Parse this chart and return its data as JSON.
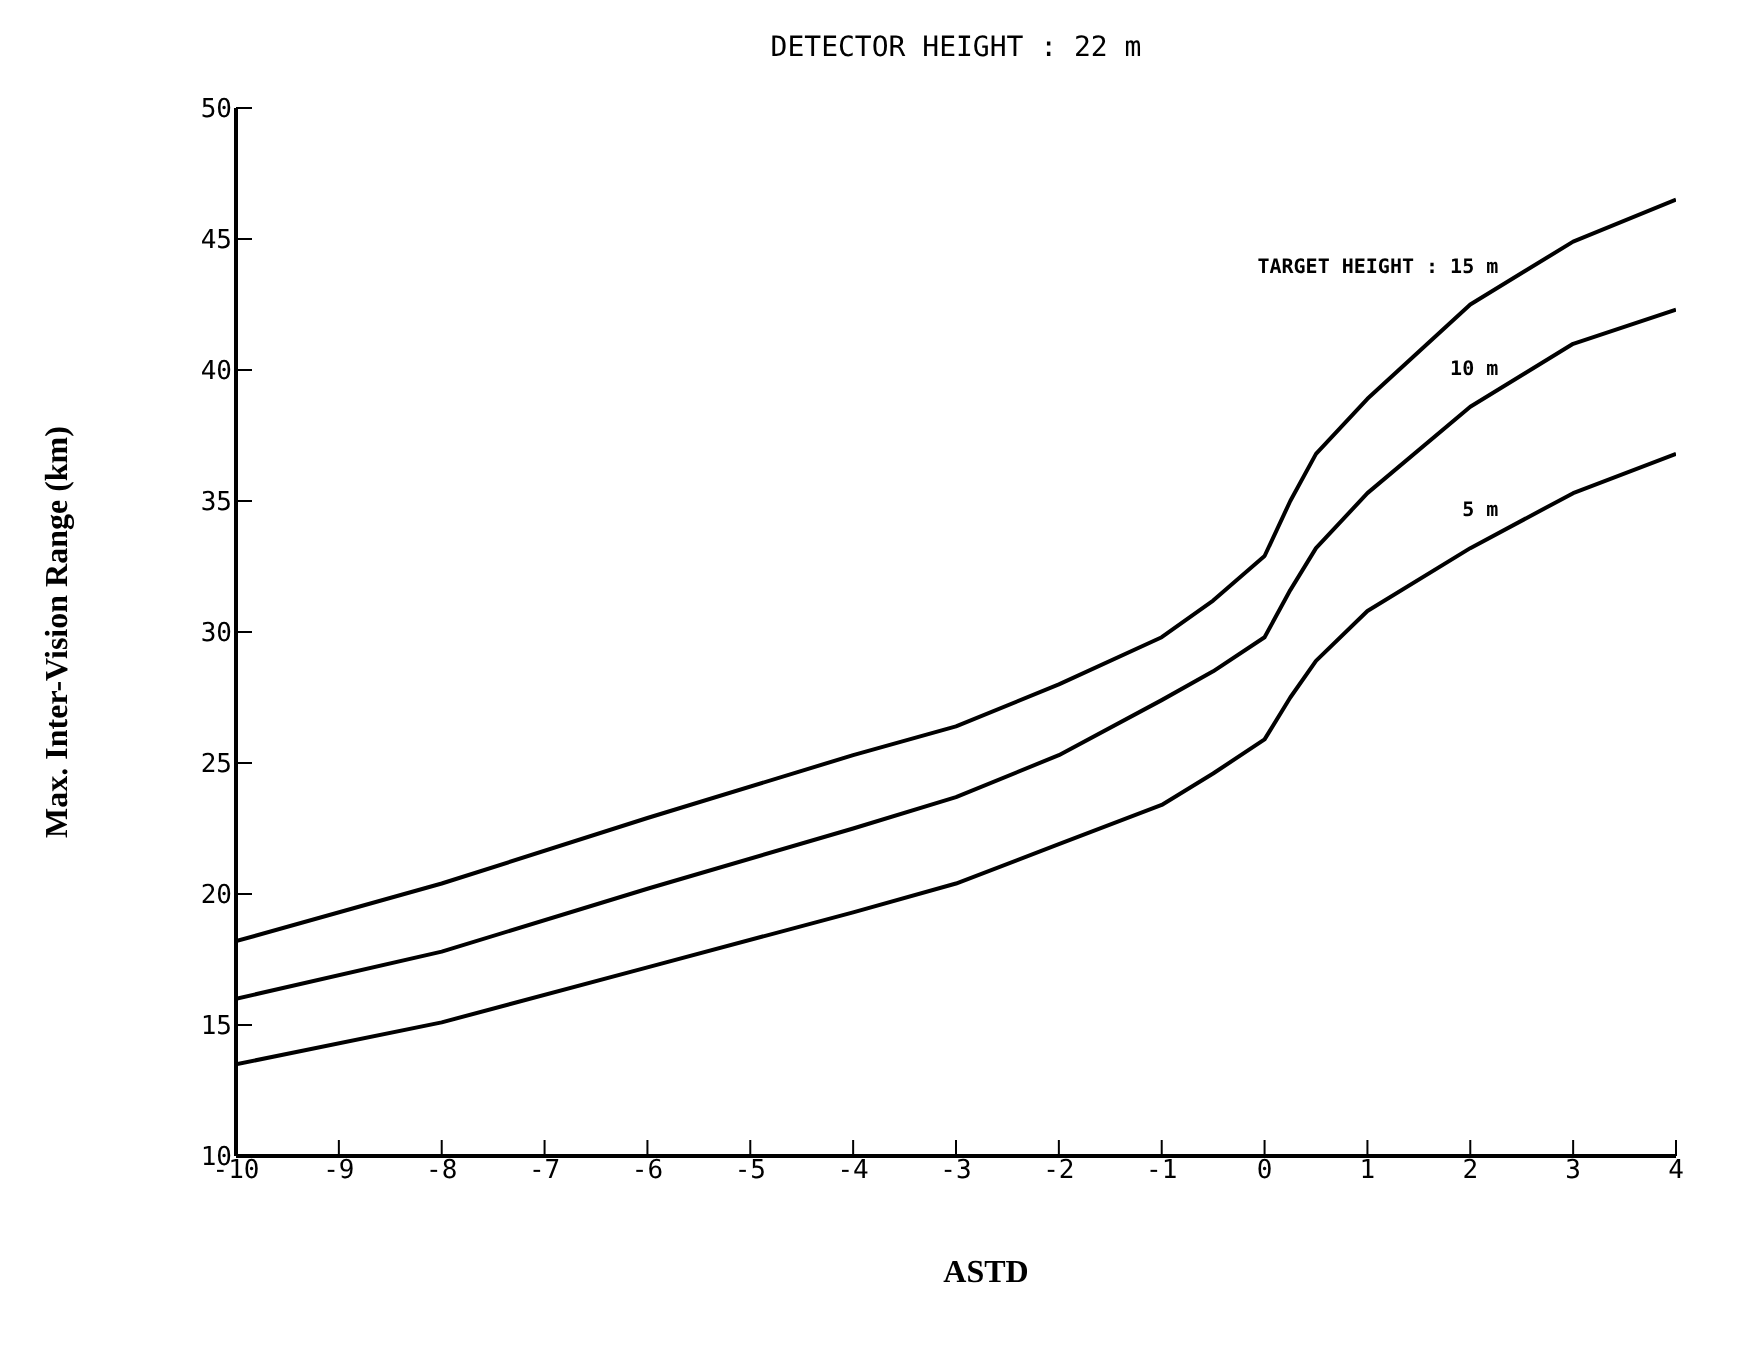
{
  "chart_data": {
    "type": "line",
    "title": "DETECTOR HEIGHT : 22 m",
    "xlabel": "ASTD",
    "ylabel": "Max. Inter-Vision Range (km)",
    "x": [
      -10,
      -8,
      -6,
      -4,
      -3,
      -2,
      -1,
      -0.5,
      0,
      0.25,
      0.5,
      1,
      2,
      3,
      4
    ],
    "series": [
      {
        "name": "TARGET HEIGHT :  15 m",
        "color": "#000000",
        "values": [
          18.2,
          20.4,
          22.9,
          25.3,
          26.4,
          28.0,
          29.8,
          31.2,
          32.9,
          35.0,
          36.8,
          38.9,
          42.5,
          44.9,
          46.5
        ]
      },
      {
        "name": "10 m",
        "color": "#000000",
        "values": [
          16.0,
          17.8,
          20.2,
          22.5,
          23.7,
          25.3,
          27.4,
          28.5,
          29.8,
          31.6,
          33.2,
          35.3,
          38.6,
          41.0,
          42.3
        ]
      },
      {
        "name": "5 m",
        "color": "#000000",
        "values": [
          13.5,
          15.1,
          17.2,
          19.3,
          20.4,
          21.9,
          23.4,
          24.6,
          25.9,
          27.5,
          28.9,
          30.8,
          33.2,
          35.3,
          36.8
        ]
      }
    ],
    "xlim": [
      -10,
      4
    ],
    "xticks": [
      -10,
      -9,
      -8,
      -7,
      -6,
      -5,
      -4,
      -3,
      -2,
      -1,
      0,
      1,
      2,
      3,
      4
    ],
    "ylim": [
      10,
      50
    ],
    "yticks": [
      10,
      15,
      20,
      25,
      30,
      35,
      40,
      45,
      50
    ],
    "grid": false,
    "legend": false,
    "marker": "none",
    "line_style": "solid"
  }
}
